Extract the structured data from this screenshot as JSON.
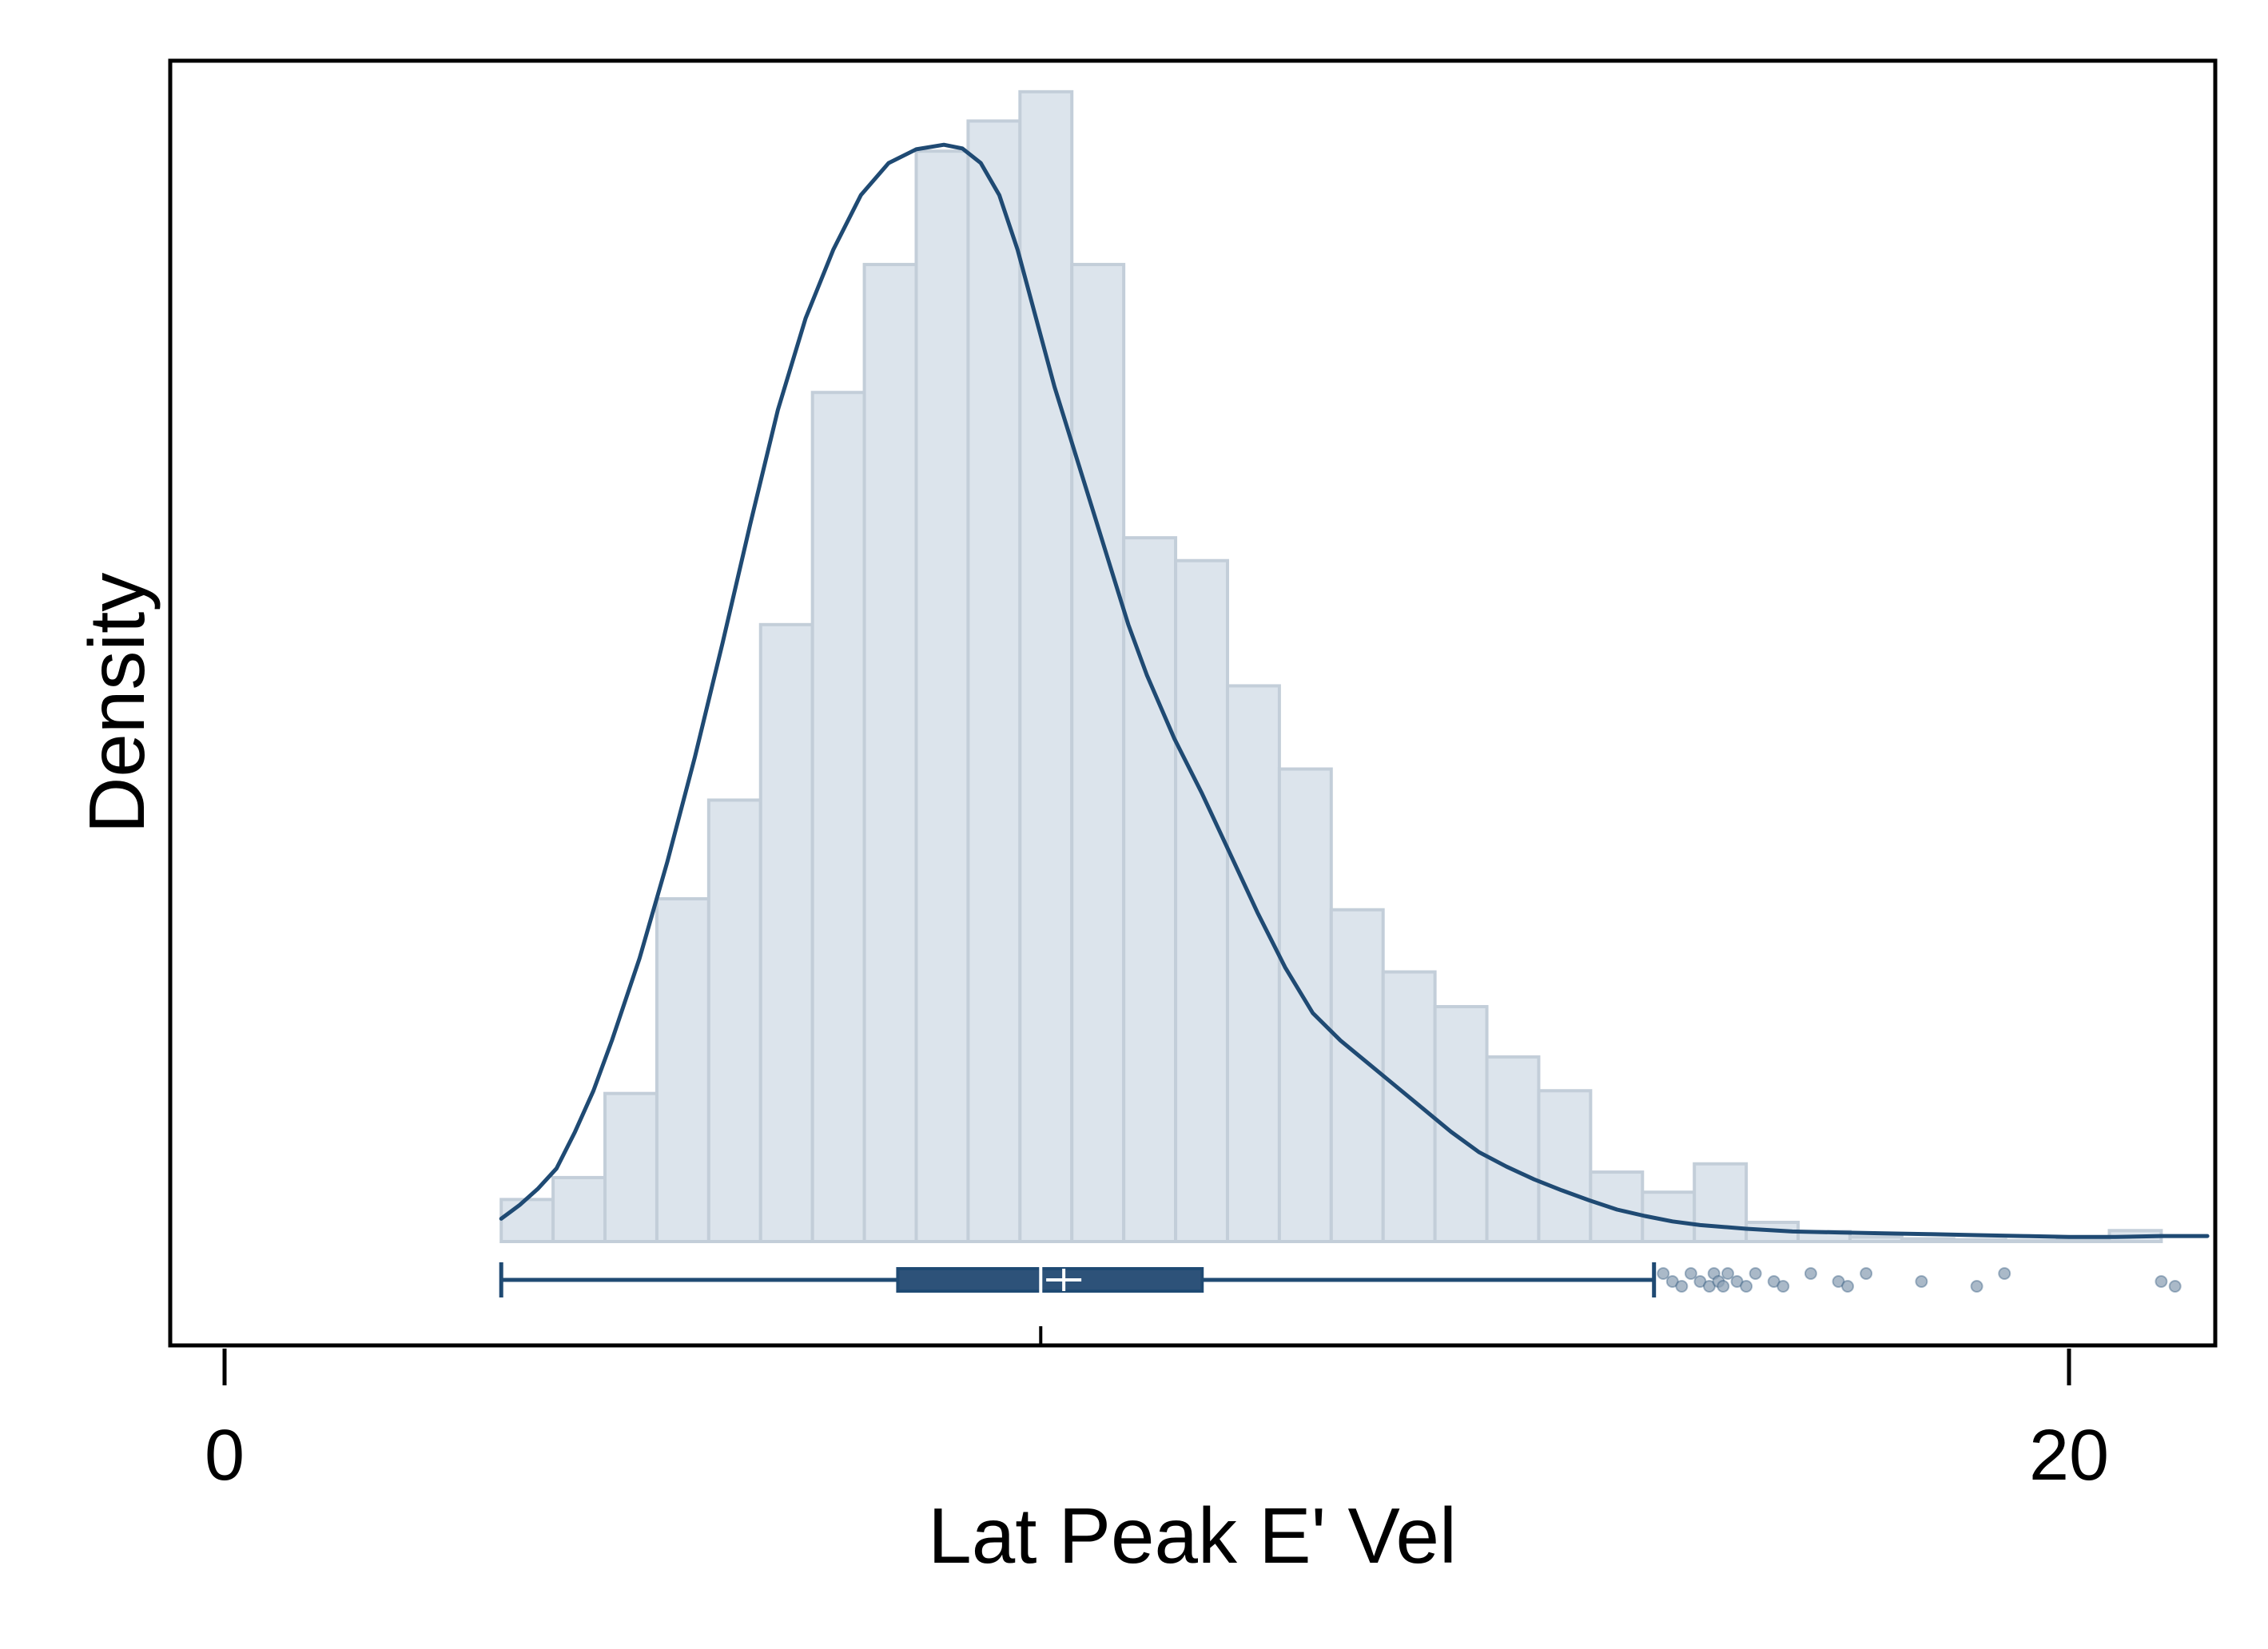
{
  "chart_data": {
    "type": "histogram",
    "title": "",
    "xlabel": "Lat Peak E' Vel",
    "ylabel": "Density",
    "xlim": [
      -0.55,
      21.65
    ],
    "ylim": [
      0,
      0.125
    ],
    "x_ticks": [
      {
        "value": 0,
        "label": "0"
      },
      {
        "value": 20,
        "label": "20"
      }
    ],
    "grid": false,
    "legend": "none",
    "colors": {
      "bar_fill": "#dce4ec",
      "bar_edge": "#c3ced9",
      "line": "#1f4a73",
      "box": "#2d5279",
      "outlier": "#8da1b6"
    },
    "histogram": {
      "bin_start": 3.0,
      "bin_width": 0.5625,
      "densities": [
        0.0046,
        0.007,
        0.0162,
        0.0375,
        0.0483,
        0.0675,
        0.0929,
        0.1069,
        0.1193,
        0.1226,
        0.1258,
        0.1069,
        0.077,
        0.0745,
        0.0608,
        0.0517,
        0.0363,
        0.0295,
        0.0257,
        0.0202,
        0.0165,
        0.0076,
        0.0054,
        0.0085,
        0.0021,
        0.0011,
        0.0005,
        0.0003,
        0.0002,
        0.0001,
        0.0002,
        0.0012
      ]
    },
    "kde": {
      "x": [
        3.0,
        3.2,
        3.4,
        3.6,
        3.8,
        4.0,
        4.2,
        4.5,
        4.8,
        5.1,
        5.4,
        5.7,
        6.0,
        6.3,
        6.6,
        6.9,
        7.2,
        7.5,
        7.8,
        8.0,
        8.2,
        8.4,
        8.6,
        8.8,
        9.0,
        9.2,
        9.4,
        9.6,
        9.8,
        10.0,
        10.3,
        10.6,
        10.9,
        11.2,
        11.5,
        11.8,
        12.1,
        12.4,
        12.7,
        13.0,
        13.3,
        13.6,
        13.9,
        14.2,
        14.5,
        14.8,
        15.1,
        15.4,
        15.7,
        16.0,
        16.5,
        17.0,
        17.5,
        18.0,
        18.5,
        19.0,
        19.5,
        20.0,
        20.5,
        21.0,
        21.5
      ],
      "y": [
        0.0025,
        0.004,
        0.0058,
        0.008,
        0.012,
        0.0165,
        0.022,
        0.031,
        0.0415,
        0.053,
        0.0655,
        0.0785,
        0.091,
        0.101,
        0.1085,
        0.1145,
        0.118,
        0.1195,
        0.12,
        0.1196,
        0.118,
        0.1145,
        0.1085,
        0.101,
        0.0935,
        0.087,
        0.0805,
        0.074,
        0.0675,
        0.062,
        0.055,
        0.049,
        0.0425,
        0.036,
        0.03,
        0.025,
        0.022,
        0.0195,
        0.017,
        0.0145,
        0.012,
        0.0098,
        0.0082,
        0.0068,
        0.0056,
        0.0045,
        0.0035,
        0.0028,
        0.0022,
        0.0018,
        0.0014,
        0.0011,
        0.001,
        0.0009,
        0.0008,
        0.0007,
        0.0006,
        0.0005,
        0.0005,
        0.0006,
        0.0006
      ]
    },
    "boxplot": {
      "whisker_low": 3.0,
      "q1": 7.3,
      "median": 8.85,
      "mean": 9.1,
      "q3": 10.6,
      "whisker_high": 15.5,
      "outliers": [
        15.6,
        15.7,
        15.8,
        15.9,
        16.0,
        16.1,
        16.15,
        16.2,
        16.25,
        16.3,
        16.4,
        16.5,
        16.6,
        16.8,
        16.9,
        17.2,
        17.5,
        17.6,
        17.8,
        18.4,
        19.0,
        19.3,
        21.0,
        21.15
      ]
    }
  }
}
